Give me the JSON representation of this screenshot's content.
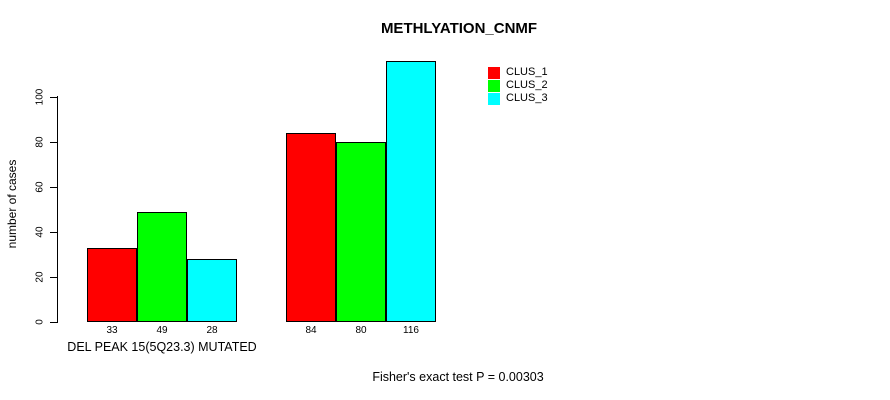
{
  "chart_data": {
    "type": "bar",
    "title": "METHLYATION_CNMF",
    "ylabel": "number of cases",
    "xlabel": "",
    "ylim": [
      0,
      116
    ],
    "yticks": [
      0,
      20,
      40,
      60,
      80,
      100
    ],
    "grid": false,
    "legend_position": "top-right",
    "series": [
      {
        "name": "CLUS_1",
        "color": "#FF0000"
      },
      {
        "name": "CLUS_2",
        "color": "#00FF00"
      },
      {
        "name": "CLUS_3",
        "color": "#00FFFF"
      }
    ],
    "groups": [
      {
        "label": "DEL PEAK 15(5Q23.3) MUTATED",
        "values": [
          33,
          49,
          28
        ]
      },
      {
        "label": "",
        "values": [
          84,
          80,
          116
        ]
      }
    ],
    "bar_value_labels": [
      "33",
      "49",
      "28",
      "84",
      "80",
      "116"
    ],
    "footnote": "Fisher's exact test P = 0.00303",
    "colors": {
      "background": "#FFFFFF",
      "axis": "#000000",
      "text": "#000000"
    }
  }
}
